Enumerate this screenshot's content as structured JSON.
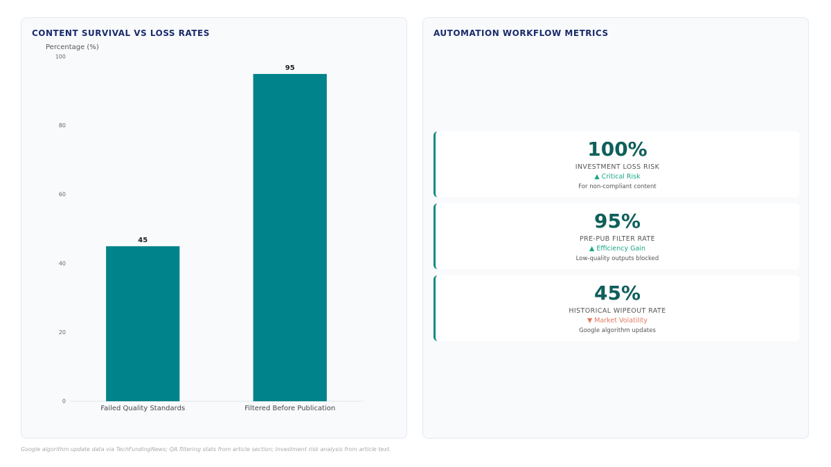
{
  "chart_data": {
    "type": "bar",
    "title": "CONTENT SURVIVAL VS LOSS RATES",
    "y_label": "Percentage (%)",
    "categories": [
      "Failed Quality Standards",
      "Filtered Before Publication"
    ],
    "values": [
      45,
      95
    ],
    "color": "#00838a",
    "ylim": [
      0,
      100
    ],
    "yticks": [
      0,
      20,
      40,
      60,
      80,
      100
    ],
    "grid": false
  },
  "metrics": {
    "title": "AUTOMATION WORKFLOW METRICS",
    "cards": [
      {
        "value": "100%",
        "label": "INVESTMENT LOSS RISK",
        "trend": "▲ Critical Risk",
        "trend_color": "#1aa784",
        "note": "For non-compliant content"
      },
      {
        "value": "95%",
        "label": "PRE-PUB FILTER RATE",
        "trend": "▲ Efficiency Gain",
        "trend_color": "#1aa784",
        "note": "Low-quality outputs blocked"
      },
      {
        "value": "45%",
        "label": "HISTORICAL WIPEOUT RATE",
        "trend": "▼ Market Volatility",
        "trend_color": "#e07a5f",
        "note": "Google algorithm updates"
      }
    ]
  },
  "footer": "Google algorithm update data via TechFundingNews; QA filtering stats from article section; Investment risk analysis from article text."
}
